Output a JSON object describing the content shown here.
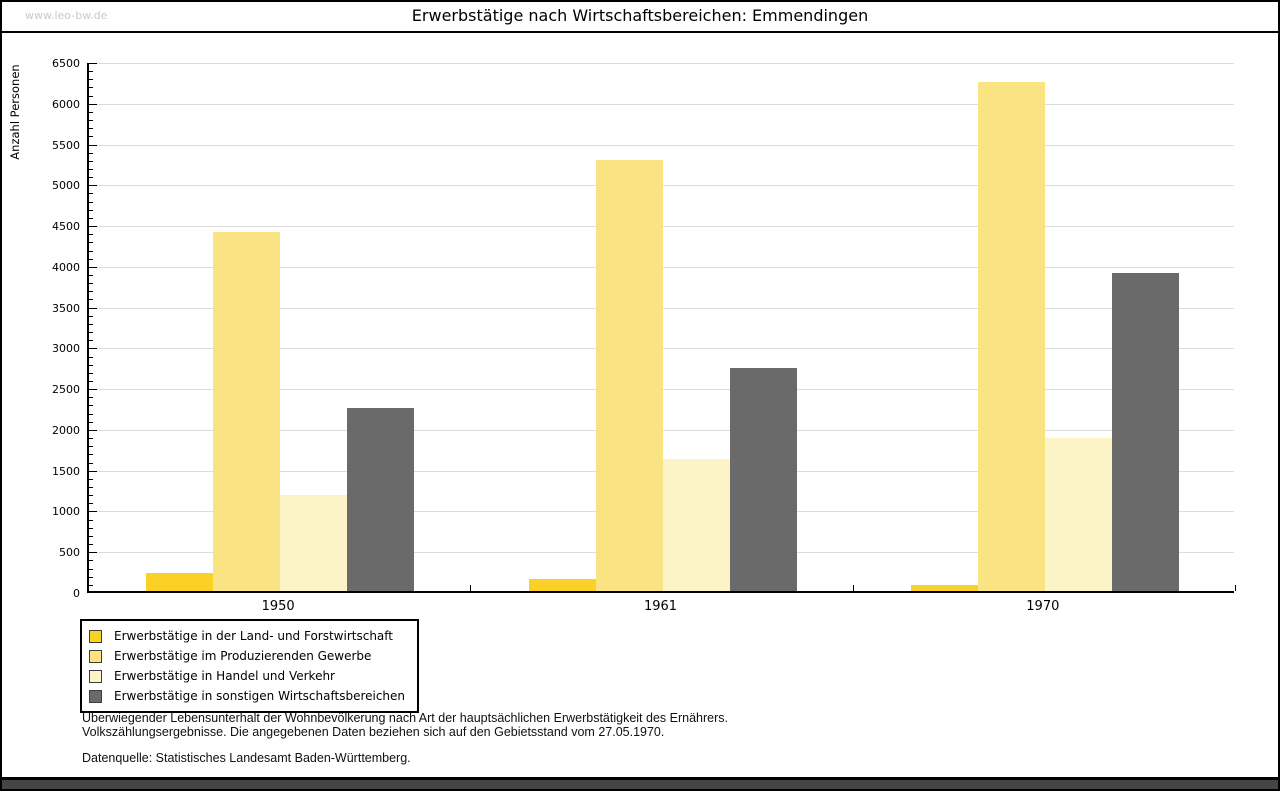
{
  "watermark": "www.leo-bw.de",
  "title": "Erwerbstätige nach Wirtschaftsbereichen: Emmendingen",
  "chart_data": {
    "type": "bar",
    "title": "Erwerbstätige nach Wirtschaftsbereichen: Emmendingen",
    "xlabel": "",
    "ylabel": "Anzahl Personen",
    "ylim": [
      0,
      6500
    ],
    "ytick_step": 500,
    "yminortick_step": 100,
    "grid": true,
    "legend_position": "bottom-left",
    "categories": [
      "1950",
      "1961",
      "1970"
    ],
    "series": [
      {
        "name": "Erwerbstätige in der Land- und Forstwirtschaft",
        "color": "#fbd128",
        "values": [
          225,
          150,
          75
        ]
      },
      {
        "name": "Erwerbstätige im Produzierenden Gewerbe",
        "color": "#fae382",
        "values": [
          4400,
          5290,
          6240
        ]
      },
      {
        "name": "Erwerbstätige in Handel und Verkehr",
        "color": "#fcf4c6",
        "values": [
          1175,
          1625,
          1875
        ]
      },
      {
        "name": "Erwerbstätige in sonstigen Wirtschaftsbereichen",
        "color": "#6a6a6a",
        "values": [
          2245,
          2740,
          3900
        ]
      }
    ]
  },
  "footer": {
    "line1": "Überwiegender Lebensunterhalt der Wohnbevölkerung nach Art der hauptsächlichen Erwerbstätigkeit des Ernährers.",
    "line2": "Volkszählungsergebnisse. Die angegebenen Daten beziehen sich auf den Gebietsstand vom 27.05.1970.",
    "source": "Datenquelle: Statistisches Landesamt Baden-Württemberg."
  }
}
